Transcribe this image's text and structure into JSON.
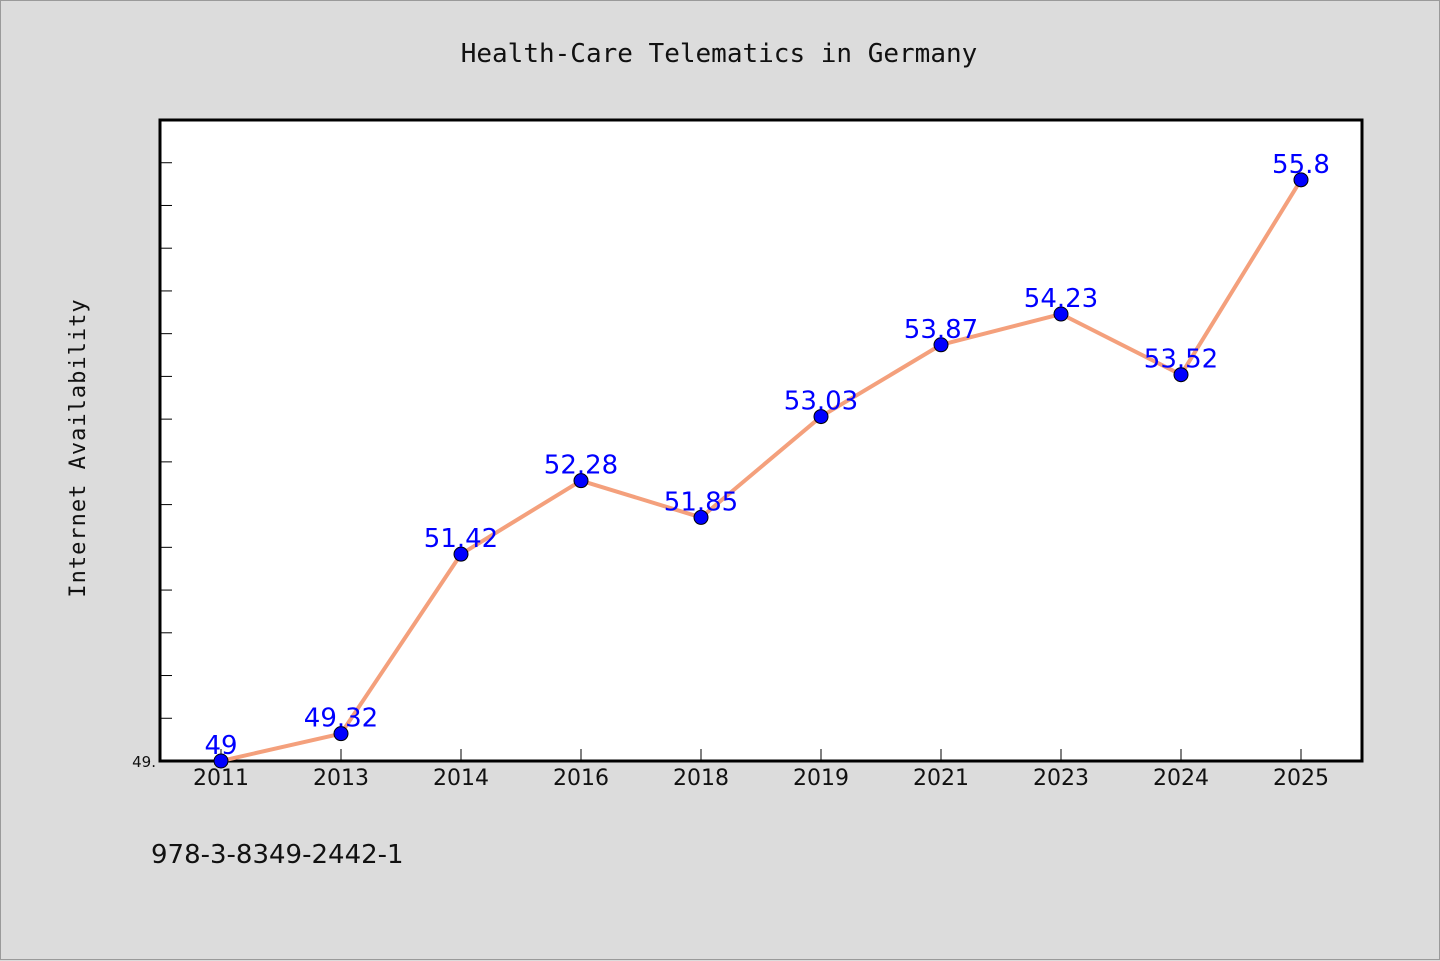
{
  "footer_code": "978-3-8349-2442-1",
  "colors": {
    "background": "#dcdcdc",
    "plot_background": "#ffffff",
    "line": "#f4a07c",
    "marker": "#0000ff",
    "data_label": "#0000ff"
  },
  "chart_data": {
    "type": "line",
    "title": "Health-Care Telematics in Germany",
    "xlabel": "",
    "ylabel": "Internet Availability",
    "categories": [
      "2011",
      "2013",
      "2014",
      "2016",
      "2018",
      "2019",
      "2021",
      "2023",
      "2024",
      "2025"
    ],
    "series": [
      {
        "values": [
          49,
          49.32,
          51.42,
          52.28,
          51.85,
          53.03,
          53.87,
          54.23,
          53.52,
          55.8
        ],
        "labels": [
          "49",
          "49.32",
          "51.42",
          "52.28",
          "51.85",
          "53.03",
          "53.87",
          "54.23",
          "53.52",
          "55.8"
        ]
      }
    ],
    "ylim": [
      49,
      56.5
    ],
    "yticks_labeled": [
      "49."
    ],
    "grid": false,
    "marker": "circle"
  }
}
